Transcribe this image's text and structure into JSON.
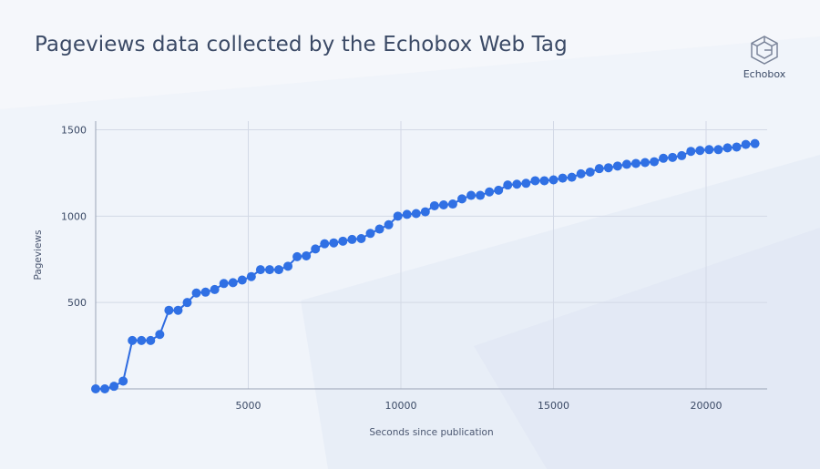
{
  "brand": {
    "name": "Echobox",
    "logo_icon": "echobox-cube-icon"
  },
  "colors": {
    "background": "#f5f7fb",
    "title": "#3b4a66",
    "point": "#3070e4",
    "line": "#2d6ae0",
    "grid": "#d3d9e6",
    "axis": "#9aa3b5"
  },
  "chart_data": {
    "type": "line",
    "title": "Pageviews data collected by the Echobox Web Tag",
    "xlabel": "Seconds since publication",
    "ylabel": "Pageviews",
    "xlim": [
      0,
      22000
    ],
    "ylim": [
      0,
      1550
    ],
    "xticks": [
      5000,
      10000,
      15000,
      20000
    ],
    "yticks": [
      500,
      1000,
      1500
    ],
    "grid": true,
    "legend": "none",
    "series": [
      {
        "markers": true,
        "x": [
          0,
          300,
          600,
          900,
          1200,
          1500,
          1800,
          2100,
          2400,
          2700,
          3000,
          3300,
          3600,
          3900,
          4200,
          4500,
          4800,
          5100,
          5400,
          5700,
          6000,
          6300,
          6600,
          6900,
          7200,
          7500,
          7800,
          8100,
          8400,
          8700,
          9000,
          9300,
          9600,
          9900,
          10200,
          10500,
          10800,
          11100,
          11400,
          11700,
          12000,
          12300,
          12600,
          12900,
          13200,
          13500,
          13800,
          14100,
          14400,
          14700,
          15000,
          15300,
          15600,
          15900,
          16200,
          16500,
          16800,
          17100,
          17400,
          17700,
          18000,
          18300,
          18600,
          18900,
          19200,
          19500,
          19800,
          20100,
          20400,
          20700,
          21000,
          21300,
          21600
        ],
        "y": [
          0,
          0,
          15,
          45,
          280,
          280,
          280,
          315,
          455,
          455,
          500,
          555,
          560,
          575,
          610,
          615,
          630,
          650,
          690,
          690,
          690,
          710,
          765,
          770,
          810,
          840,
          845,
          855,
          865,
          870,
          900,
          925,
          950,
          1000,
          1010,
          1015,
          1025,
          1060,
          1065,
          1070,
          1100,
          1120,
          1120,
          1140,
          1150,
          1180,
          1185,
          1190,
          1205,
          1205,
          1210,
          1220,
          1225,
          1245,
          1255,
          1275,
          1280,
          1290,
          1300,
          1305,
          1310,
          1315,
          1335,
          1340,
          1350,
          1375,
          1380,
          1385,
          1385,
          1395,
          1400,
          1415,
          1420
        ]
      }
    ]
  }
}
